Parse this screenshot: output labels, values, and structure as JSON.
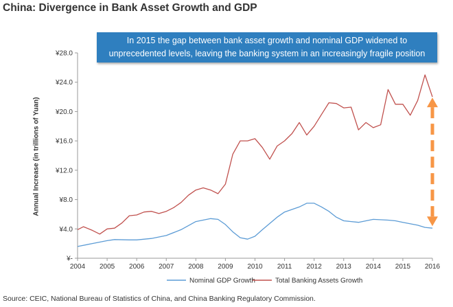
{
  "title": "China: Divergence in Bank Asset Growth and GDP",
  "callout": {
    "line1": "In 2015 the gap between bank asset growth and nominal GDP widened to",
    "line2": "unprecedented levels, leaving the banking system in an increasingly fragile position"
  },
  "source": "Source: CEIC, National Bureau of Statistics of China, and China Banking Regulatory Commission.",
  "colors": {
    "gdp": "#5b9bd5",
    "assets": "#c0504d",
    "arrow": "#f79646",
    "callout_bg": "#2f7fbf"
  },
  "chart_data": {
    "type": "line",
    "title": "China: Divergence in Bank Asset Growth and GDP",
    "xlabel": "",
    "ylabel": "Annual Increase (in trillions of Yuan)",
    "xlim": [
      2004,
      2016
    ],
    "ylim": [
      0,
      28
    ],
    "x_ticks": [
      "2004",
      "2005",
      "2006",
      "2007",
      "2008",
      "2009",
      "2010",
      "2011",
      "2012",
      "2013",
      "2014",
      "2015",
      "2016"
    ],
    "y_ticks": [
      "¥-",
      "¥4.0",
      "¥8.0",
      "¥12.0",
      "¥16.0",
      "¥20.0",
      "¥24.0",
      "¥28.0"
    ],
    "legend_position": "bottom",
    "grid": false,
    "series": [
      {
        "name": "Nominal GDP Growth",
        "color": "#5b9bd5",
        "points": [
          [
            2004,
            1.6
          ],
          [
            2004.5,
            2.0
          ],
          [
            2005,
            2.4
          ],
          [
            2005.25,
            2.55
          ],
          [
            2005.75,
            2.5
          ],
          [
            2006,
            2.5
          ],
          [
            2006.5,
            2.7
          ],
          [
            2007,
            3.1
          ],
          [
            2007.5,
            3.9
          ],
          [
            2008,
            5.0
          ],
          [
            2008.5,
            5.4
          ],
          [
            2008.75,
            5.3
          ],
          [
            2009,
            4.6
          ],
          [
            2009.25,
            3.6
          ],
          [
            2009.5,
            2.8
          ],
          [
            2009.75,
            2.6
          ],
          [
            2010,
            3.0
          ],
          [
            2010.25,
            3.9
          ],
          [
            2010.75,
            5.6
          ],
          [
            2011,
            6.3
          ],
          [
            2011.5,
            7.0
          ],
          [
            2011.75,
            7.5
          ],
          [
            2012,
            7.5
          ],
          [
            2012.25,
            7.0
          ],
          [
            2012.5,
            6.4
          ],
          [
            2012.75,
            5.6
          ],
          [
            2013,
            5.1
          ],
          [
            2013.5,
            4.9
          ],
          [
            2014,
            5.3
          ],
          [
            2014.5,
            5.2
          ],
          [
            2014.75,
            5.1
          ],
          [
            2015,
            4.9
          ],
          [
            2015.5,
            4.5
          ],
          [
            2015.75,
            4.2
          ],
          [
            2016,
            4.1
          ]
        ]
      },
      {
        "name": "Total Banking Assets Growth",
        "color": "#c0504d",
        "points": [
          [
            2004,
            3.9
          ],
          [
            2004.2,
            4.3
          ],
          [
            2004.5,
            3.8
          ],
          [
            2004.75,
            3.3
          ],
          [
            2005,
            4.0
          ],
          [
            2005.25,
            4.1
          ],
          [
            2005.5,
            4.8
          ],
          [
            2005.75,
            5.8
          ],
          [
            2006,
            5.9
          ],
          [
            2006.25,
            6.3
          ],
          [
            2006.5,
            6.4
          ],
          [
            2006.75,
            6.1
          ],
          [
            2007,
            6.4
          ],
          [
            2007.25,
            6.9
          ],
          [
            2007.5,
            7.6
          ],
          [
            2007.75,
            8.6
          ],
          [
            2008,
            9.3
          ],
          [
            2008.25,
            9.6
          ],
          [
            2008.5,
            9.3
          ],
          [
            2008.75,
            8.8
          ],
          [
            2009,
            10.1
          ],
          [
            2009.25,
            14.2
          ],
          [
            2009.5,
            16.0
          ],
          [
            2009.75,
            16.0
          ],
          [
            2010,
            16.3
          ],
          [
            2010.25,
            15.1
          ],
          [
            2010.5,
            13.5
          ],
          [
            2010.75,
            15.3
          ],
          [
            2011,
            16.0
          ],
          [
            2011.25,
            17.0
          ],
          [
            2011.5,
            18.5
          ],
          [
            2011.75,
            16.8
          ],
          [
            2012,
            18.0
          ],
          [
            2012.25,
            19.6
          ],
          [
            2012.5,
            21.2
          ],
          [
            2012.75,
            21.1
          ],
          [
            2013,
            20.5
          ],
          [
            2013.25,
            20.6
          ],
          [
            2013.5,
            17.5
          ],
          [
            2013.75,
            18.5
          ],
          [
            2014,
            17.8
          ],
          [
            2014.25,
            18.2
          ],
          [
            2014.5,
            23.0
          ],
          [
            2014.75,
            21.0
          ],
          [
            2015,
            21.0
          ],
          [
            2015.25,
            19.5
          ],
          [
            2015.5,
            21.5
          ],
          [
            2015.75,
            25.0
          ],
          [
            2016,
            22.0
          ]
        ]
      }
    ],
    "annotations": [
      {
        "type": "double-arrow",
        "x": 2016,
        "y_from": 4.1,
        "y_to": 22.0,
        "color": "#f79646"
      }
    ]
  }
}
